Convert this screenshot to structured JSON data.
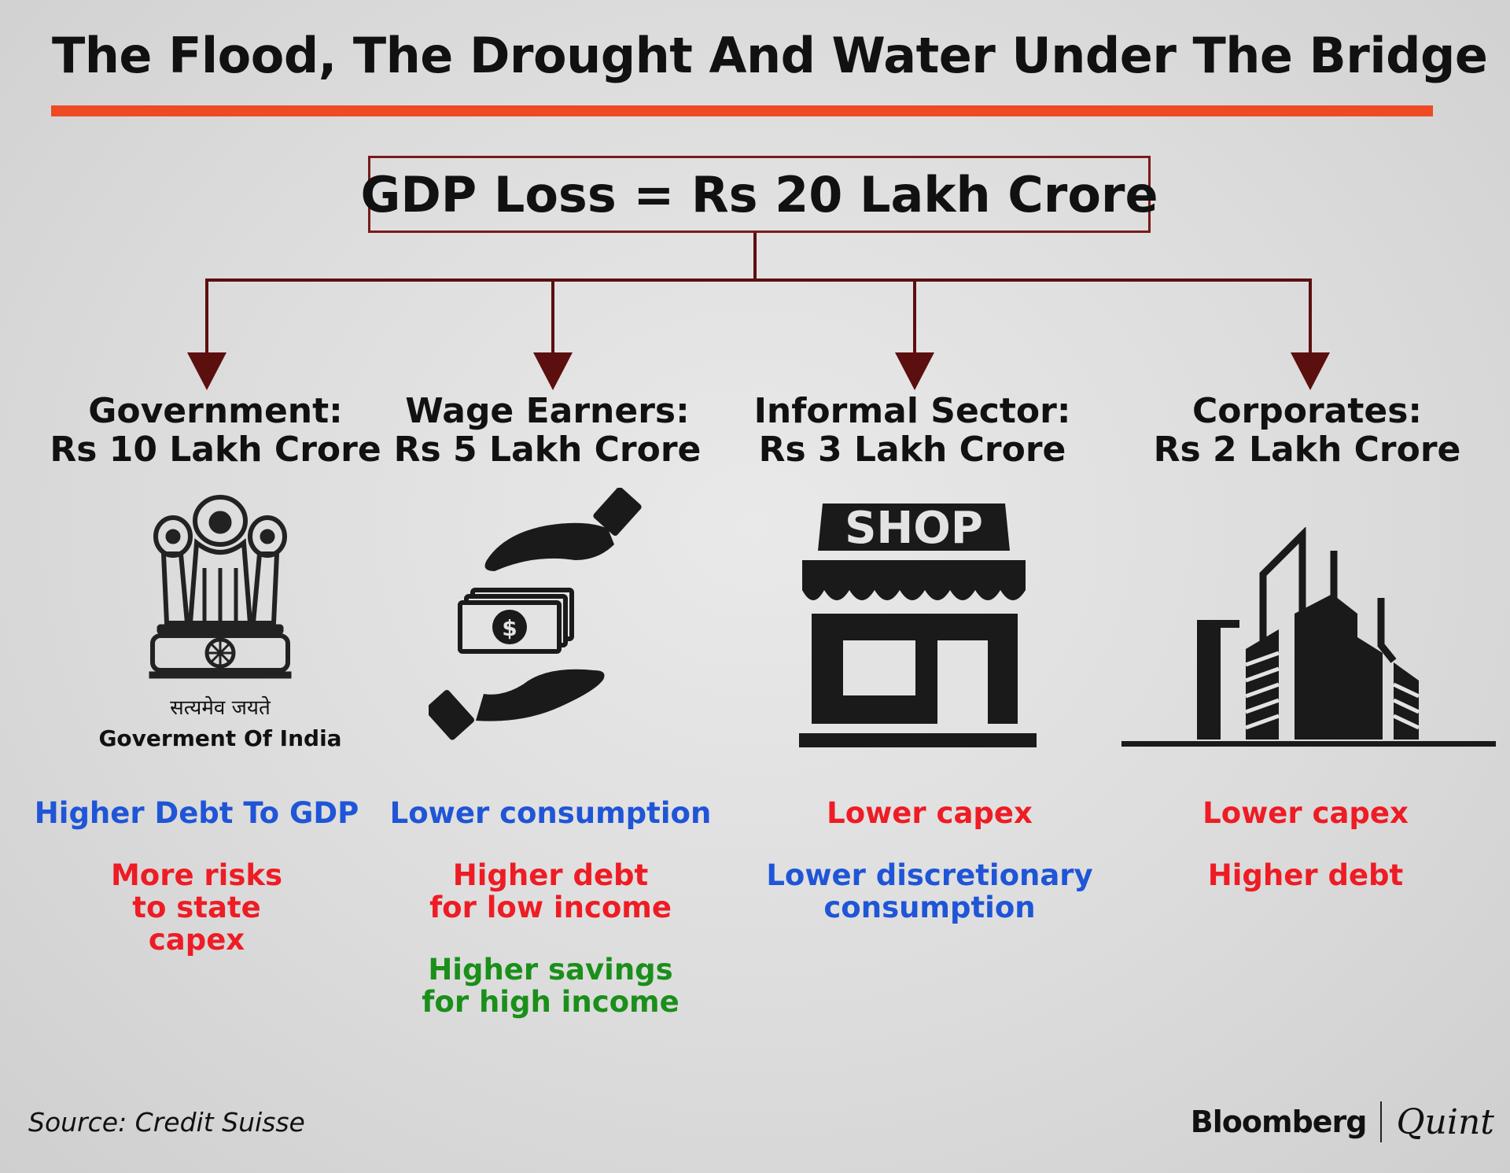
{
  "title": "The Flood, The Drought And Water Under The Bridge",
  "total": "GDP Loss = Rs 20 Lakh Crore",
  "colors": {
    "accent_rule": "#ee4a24",
    "box_border": "#7a1a1a",
    "connector": "#5c0f0f",
    "blue": "#1f55d6",
    "red": "#ee1c24",
    "green": "#1a8f1a"
  },
  "columns": [
    {
      "name": "Government:",
      "amount": "Rs 10 Lakh Crore",
      "icon": "national-emblem-icon",
      "emblem_motto": "सत्यमेव जयते",
      "emblem_org": "Goverment Of India",
      "impacts": [
        {
          "text": "Higher Debt To GDP",
          "color": "#1f55d6"
        },
        {
          "text": "More risks to state capex",
          "color": "#ee1c24"
        }
      ]
    },
    {
      "name": "Wage Earners:",
      "amount": "Rs 5 Lakh Crore",
      "icon": "money-exchange-hands-icon",
      "impacts": [
        {
          "text": "Lower consumption",
          "color": "#1f55d6"
        },
        {
          "text": "Higher debt for low income",
          "color": "#ee1c24"
        },
        {
          "text": "Higher savings for high income",
          "color": "#1a8f1a"
        }
      ]
    },
    {
      "name": "Informal Sector:",
      "amount": "Rs 3 Lakh Crore",
      "icon": "shop-icon",
      "shop_sign": "SHOP",
      "impacts": [
        {
          "text": "Lower capex",
          "color": "#ee1c24"
        },
        {
          "text": "Lower discretionary consumption",
          "color": "#1f55d6"
        }
      ]
    },
    {
      "name": "Corporates:",
      "amount": "Rs 2 Lakh Crore",
      "icon": "office-buildings-icon",
      "impacts": [
        {
          "text": "Lower capex",
          "color": "#ee1c24"
        },
        {
          "text": "Higher debt",
          "color": "#ee1c24"
        }
      ]
    }
  ],
  "source": "Source: Credit Suisse",
  "brand": {
    "left": "Bloomberg",
    "right": "Quint"
  }
}
